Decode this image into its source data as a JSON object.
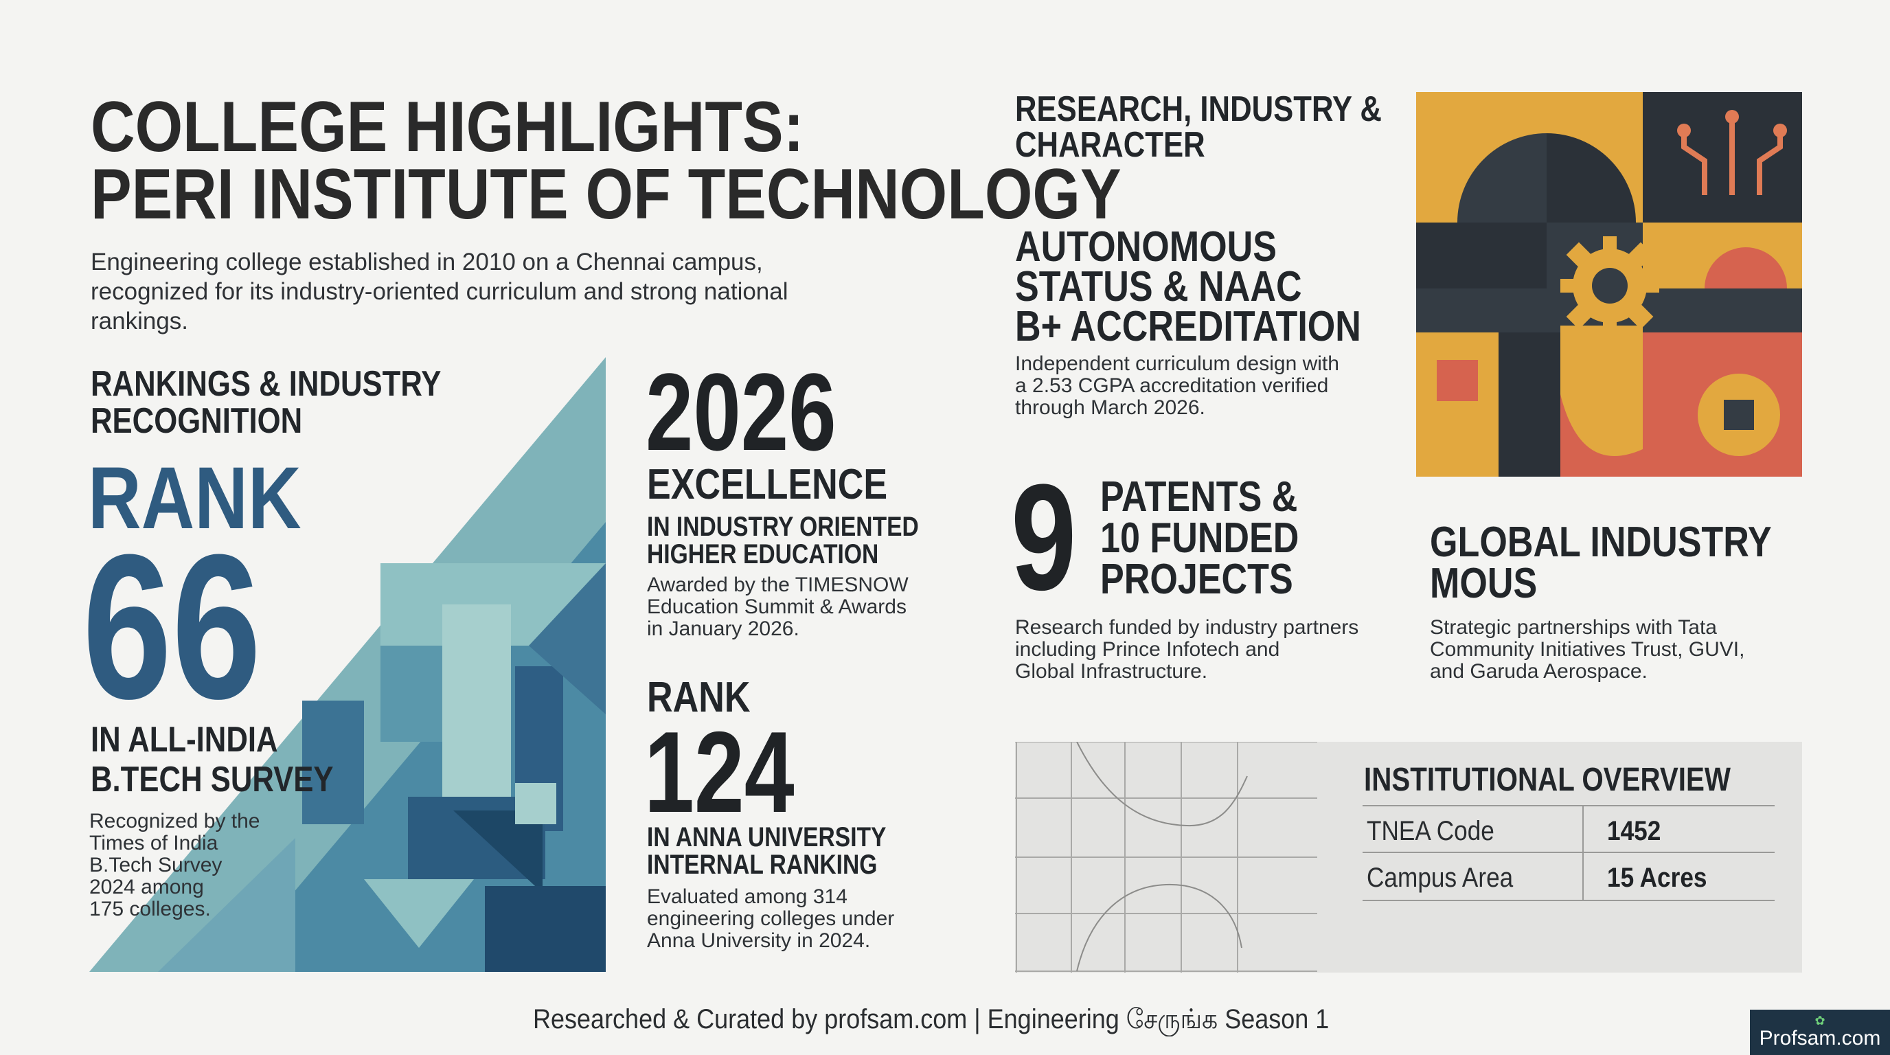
{
  "header": {
    "title_line1": "COLLEGE HIGHLIGHTS:",
    "title_line2": "PERI INSTITUTE OF TECHNOLOGY",
    "intro_line1": "Engineering college established in 2010 on a Chennai campus,",
    "intro_line2": "recognized for its industry-oriented curriculum and strong national",
    "intro_line3": "rankings."
  },
  "rankings": {
    "heading_line1": "RANKINGS & INDUSTRY",
    "heading_line2": "RECOGNITION",
    "rank_word": "RANK",
    "rank_number": "66",
    "label_line1": "IN ALL-INDIA",
    "label_line2": "B.TECH SURVEY",
    "desc_line1": "Recognized by the",
    "desc_line2": "Times of India",
    "desc_line3": "B.Tech Survey",
    "desc_line4": "2024 among",
    "desc_line5": "175 colleges."
  },
  "excellence": {
    "year": "2026",
    "heading": "EXCELLENCE",
    "sub_line1": "IN INDUSTRY ORIENTED",
    "sub_line2": "HIGHER EDUCATION",
    "desc_line1": "Awarded by the TIMESNOW",
    "desc_line2": "Education Summit & Awards",
    "desc_line3": "in January 2026."
  },
  "anna_rank": {
    "rank_word": "RANK",
    "rank_number": "124",
    "sub_line1": "IN ANNA UNIVERSITY",
    "sub_line2": "INTERNAL RANKING",
    "desc_line1": "Evaluated among 314",
    "desc_line2": "engineering colleges under",
    "desc_line3": "Anna University in 2024."
  },
  "research": {
    "heading_line1": "RESEARCH, INDUSTRY &",
    "heading_line2": "CHARACTER",
    "autonomy_line1": "AUTONOMOUS",
    "autonomy_line2": "STATUS & NAAC",
    "autonomy_line3": "B+ ACCREDITATION",
    "autonomy_desc_line1": "Independent curriculum design with",
    "autonomy_desc_line2": "a 2.53 CGPA accreditation verified",
    "autonomy_desc_line3": "through March 2026."
  },
  "patents": {
    "number": "9",
    "label_line1": "PATENTS &",
    "label_line2": "10 FUNDED",
    "label_line3": "PROJECTS",
    "desc_line1": "Research funded by industry partners",
    "desc_line2": "including Prince Infotech and",
    "desc_line3": "Global Infrastructure."
  },
  "mous": {
    "heading_line1": "GLOBAL INDUSTRY",
    "heading_line2": "MOUS",
    "desc_line1": "Strategic partnerships with Tata",
    "desc_line2": "Community Initiatives Trust, GUVI,",
    "desc_line3": "and Garuda Aerospace."
  },
  "overview": {
    "heading": "INSTITUTIONAL OVERVIEW",
    "rows": [
      {
        "label": "TNEA Code",
        "value": "1452"
      },
      {
        "label": "Campus Area",
        "value": "15 Acres"
      }
    ]
  },
  "footer": {
    "credit": "Researched & Curated by profsam.com | Engineering சேருங்க Season 1",
    "badge_text": "Profsam.com"
  },
  "colors": {
    "background": "#f4f4f2",
    "rank_blue": "#2f5b80",
    "mosaic_ochre": "#e2a83f",
    "mosaic_coral": "#d6634f",
    "mosaic_slate": "#343c44",
    "badge_navy": "#1e3344"
  }
}
